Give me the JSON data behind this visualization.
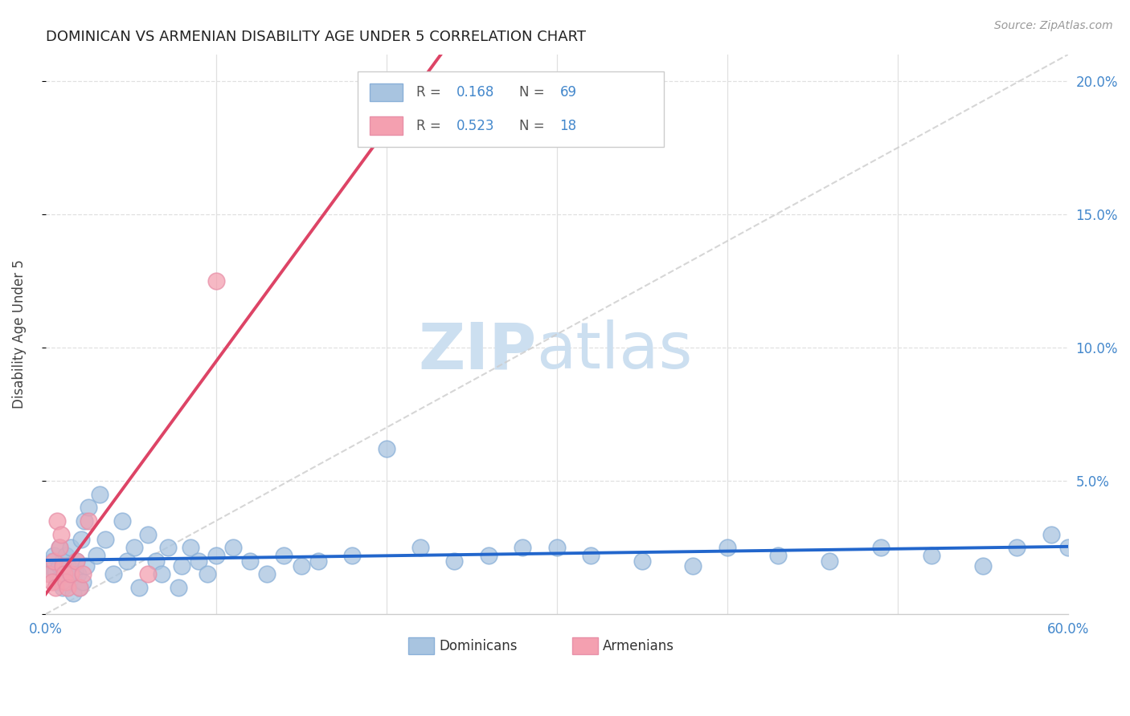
{
  "title": "DOMINICAN VS ARMENIAN DISABILITY AGE UNDER 5 CORRELATION CHART",
  "source": "Source: ZipAtlas.com",
  "ylabel": "Disability Age Under 5",
  "xlim": [
    0.0,
    0.6
  ],
  "ylim": [
    0.0,
    0.21
  ],
  "xticks": [
    0.0,
    0.6
  ],
  "xticklabels": [
    "0.0%",
    "60.0%"
  ],
  "yticks_right": [
    0.05,
    0.1,
    0.15,
    0.2
  ],
  "yticklabels_right": [
    "5.0%",
    "10.0%",
    "15.0%",
    "20.0%"
  ],
  "dominican_R": 0.168,
  "dominican_N": 69,
  "armenian_R": 0.523,
  "armenian_N": 18,
  "dominican_color": "#a8c4e0",
  "armenian_color": "#f4a0b0",
  "dominican_line_color": "#2266cc",
  "armenian_line_color": "#dd4466",
  "diagonal_color": "#cccccc",
  "background_color": "#ffffff",
  "grid_color": "#e0e0e0",
  "dominican_x": [
    0.002,
    0.003,
    0.004,
    0.005,
    0.006,
    0.007,
    0.008,
    0.008,
    0.009,
    0.01,
    0.01,
    0.011,
    0.012,
    0.013,
    0.014,
    0.015,
    0.016,
    0.017,
    0.018,
    0.019,
    0.02,
    0.021,
    0.022,
    0.023,
    0.024,
    0.025,
    0.03,
    0.032,
    0.035,
    0.04,
    0.045,
    0.048,
    0.052,
    0.055,
    0.06,
    0.065,
    0.068,
    0.072,
    0.078,
    0.08,
    0.085,
    0.09,
    0.095,
    0.1,
    0.11,
    0.12,
    0.13,
    0.14,
    0.15,
    0.16,
    0.18,
    0.2,
    0.22,
    0.24,
    0.26,
    0.28,
    0.3,
    0.32,
    0.35,
    0.38,
    0.4,
    0.43,
    0.46,
    0.49,
    0.52,
    0.55,
    0.57,
    0.59,
    0.6
  ],
  "dominican_y": [
    0.018,
    0.015,
    0.02,
    0.022,
    0.016,
    0.012,
    0.018,
    0.025,
    0.014,
    0.02,
    0.01,
    0.015,
    0.022,
    0.018,
    0.012,
    0.025,
    0.008,
    0.016,
    0.02,
    0.015,
    0.01,
    0.028,
    0.012,
    0.035,
    0.018,
    0.04,
    0.022,
    0.045,
    0.028,
    0.015,
    0.035,
    0.02,
    0.025,
    0.01,
    0.03,
    0.02,
    0.015,
    0.025,
    0.01,
    0.018,
    0.025,
    0.02,
    0.015,
    0.022,
    0.025,
    0.02,
    0.015,
    0.022,
    0.018,
    0.02,
    0.022,
    0.062,
    0.025,
    0.02,
    0.022,
    0.025,
    0.025,
    0.022,
    0.02,
    0.018,
    0.025,
    0.022,
    0.02,
    0.025,
    0.022,
    0.018,
    0.025,
    0.03,
    0.025
  ],
  "armenian_x": [
    0.002,
    0.004,
    0.005,
    0.006,
    0.007,
    0.008,
    0.009,
    0.01,
    0.011,
    0.012,
    0.013,
    0.015,
    0.018,
    0.02,
    0.022,
    0.025,
    0.06,
    0.1
  ],
  "armenian_y": [
    0.015,
    0.012,
    0.02,
    0.01,
    0.035,
    0.025,
    0.03,
    0.018,
    0.015,
    0.012,
    0.01,
    0.015,
    0.02,
    0.01,
    0.015,
    0.035,
    0.015,
    0.125
  ]
}
